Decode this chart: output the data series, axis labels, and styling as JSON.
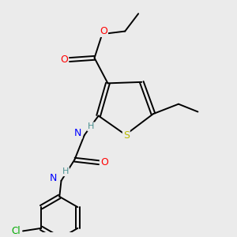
{
  "background_color": "#ebebeb",
  "bond_color": "#000000",
  "atom_colors": {
    "S": "#b8b800",
    "O": "#ff0000",
    "N": "#0000ff",
    "Cl": "#00aa00",
    "C": "#000000",
    "H": "#4a9090"
  }
}
